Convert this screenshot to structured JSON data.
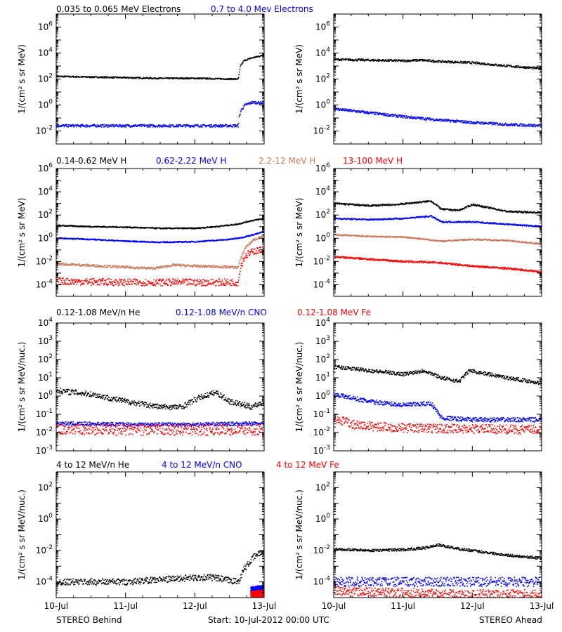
{
  "colors": {
    "black": "#000000",
    "blue": "#0000ff",
    "tan": "#c87a5e",
    "red": "#ff0000"
  },
  "footer": {
    "left": "STEREO Behind",
    "center": "Start: 10-Jul-2012 00:00 UTC",
    "right": "STEREO Ahead"
  },
  "row_titles": [
    [
      {
        "text": "0.035 to 0.065 MeV Electrons",
        "color": "#000000"
      },
      {
        "text": "0.7 to 4.0 Mev Electrons",
        "color": "#0000ff"
      }
    ],
    [
      {
        "text": "0.14-0.62 MeV H",
        "color": "#000000"
      },
      {
        "text": "0.62-2.22 MeV H",
        "color": "#0000ff"
      },
      {
        "text": "2.2-12 MeV H",
        "color": "#c87a5e"
      },
      {
        "text": "13-100 MeV H",
        "color": "#ff0000"
      }
    ],
    [
      {
        "text": "0.12-1.08 MeV/n He",
        "color": "#000000"
      },
      {
        "text": "0.12-1.08 MeV/n CNO",
        "color": "#0000ff"
      },
      {
        "text": "0.12-1.08 MeV Fe",
        "color": "#ff0000"
      }
    ],
    [
      {
        "text": "4 to 12 MeV/n He",
        "color": "#000000"
      },
      {
        "text": "4 to 12 MeV/n CNO",
        "color": "#0000ff"
      },
      {
        "text": "4 to 12 MeV Fe",
        "color": "#ff0000"
      }
    ]
  ],
  "x_ticks": [
    "10-Jul",
    "11-Jul",
    "12-Jul",
    "13-Jul"
  ],
  "chart_data": [
    {
      "type": "scatter",
      "row": 0,
      "col": 0,
      "ylabel": "1/(cm² s sr MeV)",
      "ylim_log10": [
        -3,
        7
      ],
      "yticks": [
        {
          "exp": "-2"
        },
        {
          "exp": "0"
        },
        {
          "exp": "2"
        },
        {
          "exp": "4"
        },
        {
          "exp": "6"
        }
      ],
      "xlim": [
        0,
        3
      ],
      "series": [
        {
          "color": "#000000",
          "scatter": 0.05,
          "points": [
            [
              0,
              2.2
            ],
            [
              0.5,
              2.15
            ],
            [
              1.0,
              2.1
            ],
            [
              1.5,
              2.05
            ],
            [
              2.0,
              2.05
            ],
            [
              2.5,
              2.0
            ],
            [
              2.62,
              2.0
            ],
            [
              2.63,
              2.3
            ],
            [
              2.65,
              3.0
            ],
            [
              2.7,
              3.4
            ],
            [
              2.8,
              3.6
            ],
            [
              3.0,
              3.85
            ]
          ]
        },
        {
          "color": "#0000ff",
          "scatter": 0.1,
          "points": [
            [
              0,
              -1.6
            ],
            [
              1.0,
              -1.6
            ],
            [
              2.0,
              -1.6
            ],
            [
              2.62,
              -1.6
            ],
            [
              2.63,
              -1.0
            ],
            [
              2.66,
              -0.4
            ],
            [
              2.72,
              0.0
            ],
            [
              2.82,
              0.2
            ],
            [
              3.0,
              0.15
            ]
          ]
        }
      ]
    },
    {
      "type": "scatter",
      "row": 0,
      "col": 1,
      "ylabel": "1/(cm² s sr MeV)",
      "ylim_log10": [
        -3,
        7
      ],
      "yticks": [
        {
          "exp": "-2"
        },
        {
          "exp": "0"
        },
        {
          "exp": "2"
        },
        {
          "exp": "4"
        },
        {
          "exp": "6"
        }
      ],
      "xlim": [
        0,
        3
      ],
      "series": [
        {
          "color": "#000000",
          "scatter": 0.08,
          "points": [
            [
              0,
              3.5
            ],
            [
              0.5,
              3.45
            ],
            [
              1.0,
              3.4
            ],
            [
              1.25,
              3.45
            ],
            [
              1.5,
              3.35
            ],
            [
              2.0,
              3.25
            ],
            [
              2.5,
              3.0
            ],
            [
              3.0,
              2.8
            ]
          ]
        },
        {
          "color": "#0000ff",
          "scatter": 0.1,
          "points": [
            [
              0,
              -0.3
            ],
            [
              0.5,
              -0.6
            ],
            [
              1.0,
              -0.9
            ],
            [
              1.5,
              -1.15
            ],
            [
              2.0,
              -1.35
            ],
            [
              2.5,
              -1.5
            ],
            [
              3.0,
              -1.6
            ]
          ]
        }
      ]
    },
    {
      "type": "scatter",
      "row": 1,
      "col": 0,
      "ylabel": "1/(cm² s sr MeV)",
      "ylim_log10": [
        -5,
        6
      ],
      "yticks": [
        {
          "exp": "-4"
        },
        {
          "exp": "-2"
        },
        {
          "exp": "0"
        },
        {
          "exp": "2"
        },
        {
          "exp": "4"
        },
        {
          "exp": "6"
        }
      ],
      "xlim": [
        0,
        3
      ],
      "series": [
        {
          "color": "#000000",
          "scatter": 0.05,
          "points": [
            [
              0,
              1.1
            ],
            [
              0.5,
              1.0
            ],
            [
              1.0,
              0.95
            ],
            [
              1.5,
              0.85
            ],
            [
              2.0,
              0.85
            ],
            [
              2.3,
              1.0
            ],
            [
              2.6,
              1.2
            ],
            [
              2.8,
              1.5
            ],
            [
              3.0,
              1.7
            ]
          ]
        },
        {
          "color": "#0000ff",
          "scatter": 0.05,
          "points": [
            [
              0,
              0.0
            ],
            [
              0.5,
              -0.1
            ],
            [
              1.0,
              -0.25
            ],
            [
              1.5,
              -0.35
            ],
            [
              2.0,
              -0.3
            ],
            [
              2.5,
              -0.1
            ],
            [
              2.7,
              0.1
            ],
            [
              2.9,
              0.4
            ],
            [
              3.0,
              0.6
            ]
          ]
        },
        {
          "color": "#c87a5e",
          "scatter": 0.1,
          "points": [
            [
              0,
              -2.2
            ],
            [
              0.5,
              -2.35
            ],
            [
              1.0,
              -2.5
            ],
            [
              1.4,
              -2.6
            ],
            [
              1.7,
              -2.3
            ],
            [
              2.0,
              -2.4
            ],
            [
              2.62,
              -2.5
            ],
            [
              2.65,
              -1.8
            ],
            [
              2.72,
              -0.8
            ],
            [
              2.85,
              -0.1
            ],
            [
              3.0,
              0.2
            ]
          ]
        },
        {
          "color": "#ff0000",
          "scatter": 0.3,
          "points": [
            [
              0,
              -3.7
            ],
            [
              1.0,
              -3.8
            ],
            [
              2.0,
              -3.8
            ],
            [
              2.62,
              -3.8
            ],
            [
              2.65,
              -2.5
            ],
            [
              2.72,
              -1.5
            ],
            [
              2.85,
              -1.1
            ],
            [
              3.0,
              -1.0
            ]
          ]
        }
      ]
    },
    {
      "type": "scatter",
      "row": 1,
      "col": 1,
      "ylabel": "1/(cm² s sr MeV)",
      "ylim_log10": [
        -5,
        6
      ],
      "yticks": [
        {
          "exp": "-4"
        },
        {
          "exp": "-2"
        },
        {
          "exp": "0"
        },
        {
          "exp": "2"
        },
        {
          "exp": "4"
        },
        {
          "exp": "6"
        }
      ],
      "xlim": [
        0,
        3
      ],
      "series": [
        {
          "color": "#000000",
          "scatter": 0.07,
          "points": [
            [
              0,
              3.0
            ],
            [
              0.5,
              2.8
            ],
            [
              0.9,
              2.9
            ],
            [
              1.4,
              3.2
            ],
            [
              1.55,
              2.5
            ],
            [
              1.8,
              2.4
            ],
            [
              2.0,
              2.9
            ],
            [
              2.5,
              2.3
            ],
            [
              3.0,
              2.2
            ]
          ]
        },
        {
          "color": "#0000ff",
          "scatter": 0.06,
          "points": [
            [
              0,
              1.7
            ],
            [
              0.5,
              1.6
            ],
            [
              1.0,
              1.7
            ],
            [
              1.4,
              1.9
            ],
            [
              1.55,
              1.4
            ],
            [
              2.0,
              1.4
            ],
            [
              2.5,
              1.2
            ],
            [
              3.0,
              1.0
            ]
          ]
        },
        {
          "color": "#c87a5e",
          "scatter": 0.06,
          "points": [
            [
              0,
              0.3
            ],
            [
              0.5,
              0.15
            ],
            [
              1.0,
              0.1
            ],
            [
              1.55,
              -0.25
            ],
            [
              2.0,
              -0.1
            ],
            [
              2.5,
              -0.2
            ],
            [
              3.0,
              -0.5
            ]
          ]
        },
        {
          "color": "#ff0000",
          "scatter": 0.08,
          "points": [
            [
              0,
              -1.6
            ],
            [
              0.5,
              -1.8
            ],
            [
              1.0,
              -2.0
            ],
            [
              1.5,
              -2.1
            ],
            [
              2.0,
              -2.4
            ],
            [
              2.5,
              -2.6
            ],
            [
              3.0,
              -2.9
            ]
          ]
        }
      ]
    },
    {
      "type": "scatter",
      "row": 2,
      "col": 0,
      "ylabel": "1/(cm² s sr MeV/nuc.)",
      "ylim_log10": [
        -3,
        4
      ],
      "yticks": [
        {
          "exp": "-3"
        },
        {
          "exp": "-2"
        },
        {
          "exp": "-1"
        },
        {
          "exp": "0"
        },
        {
          "exp": "1"
        },
        {
          "exp": "2"
        },
        {
          "exp": "3"
        },
        {
          "exp": "4"
        }
      ],
      "xlim": [
        0,
        3
      ],
      "series": [
        {
          "color": "#000000",
          "scatter": 0.15,
          "points": [
            [
              0,
              0.3
            ],
            [
              0.5,
              0.1
            ],
            [
              1.0,
              -0.3
            ],
            [
              1.5,
              -0.6
            ],
            [
              1.8,
              -0.6
            ],
            [
              2.05,
              -0.1
            ],
            [
              2.3,
              0.2
            ],
            [
              2.5,
              -0.3
            ],
            [
              2.8,
              -0.6
            ],
            [
              3.0,
              -0.3
            ]
          ]
        },
        {
          "color": "#0000ff",
          "scatter": 0.1,
          "points": [
            [
              0,
              -1.5
            ],
            [
              1.0,
              -1.55
            ],
            [
              2.0,
              -1.55
            ],
            [
              3.0,
              -1.5
            ]
          ]
        },
        {
          "color": "#ff0000",
          "scatter": 0.3,
          "points": [
            [
              0,
              -1.8
            ],
            [
              1.0,
              -1.85
            ],
            [
              2.0,
              -1.85
            ],
            [
              3.0,
              -1.85
            ]
          ]
        }
      ]
    },
    {
      "type": "scatter",
      "row": 2,
      "col": 1,
      "ylabel": "1/(cm² s sr MeV/nuc.)",
      "ylim_log10": [
        -3,
        4
      ],
      "yticks": [
        {
          "exp": "-3"
        },
        {
          "exp": "-2"
        },
        {
          "exp": "-1"
        },
        {
          "exp": "0"
        },
        {
          "exp": "1"
        },
        {
          "exp": "2"
        },
        {
          "exp": "3"
        },
        {
          "exp": "4"
        }
      ],
      "xlim": [
        0,
        3
      ],
      "series": [
        {
          "color": "#000000",
          "scatter": 0.1,
          "points": [
            [
              0,
              1.6
            ],
            [
              0.5,
              1.4
            ],
            [
              1.0,
              1.2
            ],
            [
              1.3,
              1.4
            ],
            [
              1.55,
              1.0
            ],
            [
              1.8,
              0.8
            ],
            [
              1.95,
              1.4
            ],
            [
              2.5,
              1.0
            ],
            [
              3.0,
              0.7
            ]
          ]
        },
        {
          "color": "#0000ff",
          "scatter": 0.12,
          "points": [
            [
              0,
              0.1
            ],
            [
              0.5,
              -0.3
            ],
            [
              1.0,
              -0.5
            ],
            [
              1.4,
              -0.4
            ],
            [
              1.55,
              -1.2
            ],
            [
              2.0,
              -1.3
            ],
            [
              3.0,
              -1.3
            ]
          ]
        },
        {
          "color": "#ff0000",
          "scatter": 0.25,
          "points": [
            [
              0,
              -1.2
            ],
            [
              0.3,
              -1.6
            ],
            [
              1.0,
              -1.75
            ],
            [
              2.0,
              -1.8
            ],
            [
              3.0,
              -1.85
            ]
          ]
        }
      ]
    },
    {
      "type": "scatter",
      "row": 3,
      "col": 0,
      "ylabel": "1/(cm² s sr MeV/nuc.)",
      "ylim_log10": [
        -5,
        3
      ],
      "yticks": [
        {
          "exp": "-4"
        },
        {
          "exp": "-2"
        },
        {
          "exp": "0"
        },
        {
          "exp": "2"
        }
      ],
      "xlim": [
        0,
        3
      ],
      "series": [
        {
          "color": "#000000",
          "scatter": 0.2,
          "points": [
            [
              0,
              -4.0
            ],
            [
              1.0,
              -4.0
            ],
            [
              1.7,
              -3.8
            ],
            [
              2.2,
              -3.7
            ],
            [
              2.62,
              -4.0
            ],
            [
              2.7,
              -3.2
            ],
            [
              2.85,
              -2.4
            ],
            [
              3.0,
              -2.0
            ]
          ]
        },
        {
          "color": "#0000ff",
          "scatter": 0.3,
          "points": [
            [
              2.8,
              -4.6
            ],
            [
              3.0,
              -4.5
            ]
          ]
        },
        {
          "color": "#ff0000",
          "scatter": 0.3,
          "points": [
            [
              2.8,
              -4.9
            ],
            [
              3.0,
              -4.8
            ]
          ]
        }
      ]
    },
    {
      "type": "scatter",
      "row": 3,
      "col": 1,
      "ylabel": "1/(cm² s sr MeV/nuc.)",
      "ylim_log10": [
        -5,
        3
      ],
      "yticks": [
        {
          "exp": "-4"
        },
        {
          "exp": "-2"
        },
        {
          "exp": "0"
        },
        {
          "exp": "2"
        }
      ],
      "xlim": [
        0,
        3
      ],
      "series": [
        {
          "color": "#000000",
          "scatter": 0.08,
          "points": [
            [
              0,
              -1.9
            ],
            [
              0.5,
              -2.0
            ],
            [
              1.0,
              -1.95
            ],
            [
              1.3,
              -1.85
            ],
            [
              1.5,
              -1.65
            ],
            [
              1.8,
              -1.9
            ],
            [
              2.5,
              -2.3
            ],
            [
              3.0,
              -2.5
            ]
          ]
        },
        {
          "color": "#0000ff",
          "scatter": 0.3,
          "points": [
            [
              0,
              -4.0
            ],
            [
              1.0,
              -4.0
            ],
            [
              2.0,
              -4.0
            ],
            [
              3.0,
              -4.0
            ]
          ]
        },
        {
          "color": "#ff0000",
          "scatter": 0.3,
          "points": [
            [
              0,
              -4.6
            ],
            [
              1.0,
              -4.7
            ],
            [
              2.0,
              -4.8
            ],
            [
              3.0,
              -4.8
            ]
          ]
        }
      ]
    }
  ]
}
